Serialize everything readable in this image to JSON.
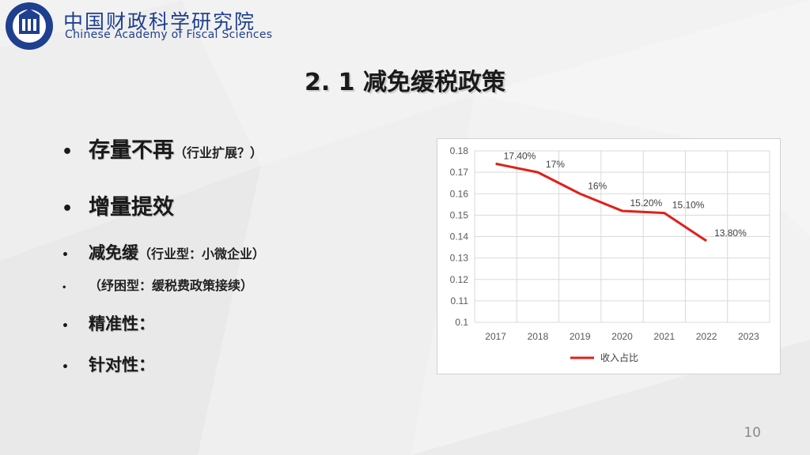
{
  "header": {
    "org_name_cn": "中国财政科学研究院",
    "org_name_en": "Chinese Academy of Fiscal Sciences"
  },
  "slide": {
    "title": "2. 1 减免缓税政策",
    "bullets": [
      {
        "text": "存量不再",
        "note": "（行业扩展？）"
      },
      {
        "text": "增量提效",
        "note": ""
      },
      {
        "text": "减免缓",
        "note": "（行业型：小微企业）"
      },
      {
        "text": "",
        "note": "（纾困型：缓税费政策接续）"
      },
      {
        "text": "精准性：",
        "note": ""
      },
      {
        "text": "针对性：",
        "note": ""
      }
    ],
    "page_number": "10"
  },
  "chart_data": {
    "type": "line",
    "x": [
      "2017",
      "2018",
      "2019",
      "2020",
      "2021",
      "2022",
      "2023"
    ],
    "y_ticks": [
      "0.1",
      "0.11",
      "0.12",
      "0.13",
      "0.14",
      "0.15",
      "0.16",
      "0.17",
      "0.18"
    ],
    "ylim": [
      0.1,
      0.18
    ],
    "grid": true,
    "legend_position": "bottom",
    "series": [
      {
        "name": "收入占比",
        "color": "#e0201b",
        "values": [
          0.174,
          0.17,
          0.16,
          0.152,
          0.151,
          0.138,
          null
        ],
        "labels": [
          "17.40%",
          "17%",
          "16%",
          "15.20%",
          "15.10%",
          "13.80%",
          ""
        ]
      }
    ]
  }
}
